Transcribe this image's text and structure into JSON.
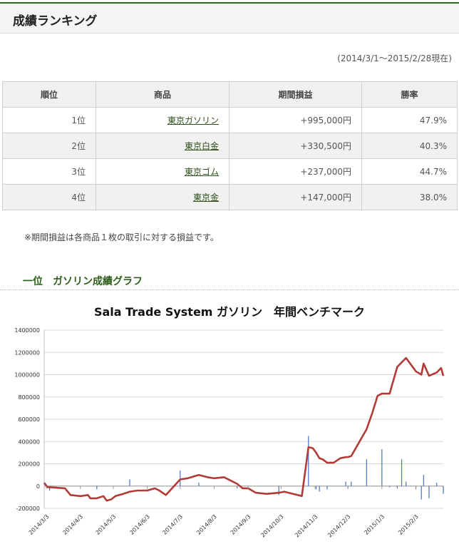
{
  "header": {
    "title": "成績ランキング"
  },
  "period_text": "(2014/3/1～2015/2/28現在)",
  "ranking": {
    "columns": [
      "順位",
      "商品",
      "期間損益",
      "勝率"
    ],
    "rows": [
      {
        "rank": "1位",
        "product": "東京ガソリン",
        "profit": "+995,000円",
        "win_rate": "47.9%"
      },
      {
        "rank": "2位",
        "product": "東京白金",
        "profit": "+330,500円",
        "win_rate": "40.3%"
      },
      {
        "rank": "3位",
        "product": "東京ゴム",
        "profit": "+237,000円",
        "win_rate": "44.7%"
      },
      {
        "rank": "4位",
        "product": "東京金",
        "profit": "+147,000円",
        "win_rate": "38.0%"
      }
    ]
  },
  "note": "※期間損益は各商品１枚の取引に対する損益です。",
  "section_title": "一位　ガソリン成績グラフ",
  "colors": {
    "accent": "#2c5e1a",
    "line": "#b23b36",
    "bar": "#4472c4"
  },
  "chart_data": {
    "type": "line",
    "title": "Sala Trade System ガソリン　年間ベンチマーク",
    "xlabel": "",
    "ylabel": "",
    "ylim": [
      -200000,
      1400000
    ],
    "y_ticks": [
      "1400000",
      "1200000",
      "1000000",
      "800000",
      "600000",
      "400000",
      "200000",
      "0",
      "-200000"
    ],
    "x_ticks": [
      "2014/3/3",
      "2014/4/3",
      "2014/5/3",
      "2014/6/3",
      "2014/7/3",
      "2014/8/3",
      "2014/9/3",
      "2014/10/3",
      "2014/11/3",
      "2014/12/3",
      "2015/1/3",
      "2015/2/3"
    ],
    "grid": true,
    "series": [
      {
        "kind": "cumulative",
        "x": [
          "2014/3/1",
          "2014/3/4",
          "2014/3/6",
          "2014/3/20",
          "2014/3/25",
          "2014/4/3",
          "2014/4/10",
          "2014/4/12",
          "2014/4/18",
          "2014/4/24",
          "2014/4/27",
          "2014/5/1",
          "2014/5/5",
          "2014/5/12",
          "2014/5/18",
          "2014/5/25",
          "2014/6/3",
          "2014/6/10",
          "2014/6/14",
          "2014/6/20",
          "2014/7/3",
          "2014/7/10",
          "2014/7/20",
          "2014/7/28",
          "2014/8/3",
          "2014/8/12",
          "2014/8/18",
          "2014/8/24",
          "2014/8/29",
          "2014/9/3",
          "2014/9/10",
          "2014/9/20",
          "2014/10/1",
          "2014/10/6",
          "2014/10/22",
          "2014/10/28",
          "2014/11/1",
          "2014/11/4",
          "2014/11/7",
          "2014/11/10",
          "2014/11/14",
          "2014/11/20",
          "2014/11/26",
          "2014/12/1",
          "2014/12/3",
          "2014/12/6",
          "2014/12/20",
          "2014/12/25",
          "2014/12/30",
          "2015/1/3",
          "2015/1/10",
          "2015/1/17",
          "2015/1/21",
          "2015/1/25",
          "2015/2/3",
          "2015/2/8",
          "2015/2/10",
          "2015/2/15",
          "2015/2/22",
          "2015/2/26",
          "2015/2/28"
        ],
        "y": [
          30000,
          -10000,
          -10000,
          -20000,
          -80000,
          -90000,
          -80000,
          -110000,
          -110000,
          -90000,
          -130000,
          -120000,
          -90000,
          -70000,
          -50000,
          -40000,
          -40000,
          -20000,
          -40000,
          -80000,
          60000,
          70000,
          100000,
          80000,
          70000,
          80000,
          50000,
          20000,
          -20000,
          -20000,
          -60000,
          -70000,
          -60000,
          -50000,
          -90000,
          350000,
          340000,
          300000,
          250000,
          240000,
          210000,
          210000,
          250000,
          260000,
          260000,
          270000,
          510000,
          650000,
          810000,
          830000,
          830000,
          1070000,
          1110000,
          1150000,
          1030000,
          1000000,
          1100000,
          990000,
          1020000,
          1060000,
          990000
        ]
      },
      {
        "kind": "daily_bars",
        "x": [
          "2014/3/6",
          "2014/4/18",
          "2014/5/18",
          "2014/7/3",
          "2014/7/20",
          "2014/8/24",
          "2014/10/1",
          "2014/10/28",
          "2014/11/4",
          "2014/11/7",
          "2014/11/14",
          "2014/12/1",
          "2014/12/3",
          "2014/12/6",
          "2014/12/20",
          "2015/1/3",
          "2015/1/10",
          "2015/1/17",
          "2015/1/21",
          "2015/1/25",
          "2015/2/3",
          "2015/2/8",
          "2015/2/10",
          "2015/2/15",
          "2015/2/22",
          "2015/2/28"
        ],
        "y": [
          -40000,
          -30000,
          60000,
          140000,
          30000,
          -20000,
          -80000,
          450000,
          -30000,
          -50000,
          -30000,
          40000,
          -20000,
          40000,
          240000,
          330000,
          -10000,
          -20000,
          240000,
          40000,
          -30000,
          -120000,
          100000,
          -110000,
          30000,
          -70000
        ]
      }
    ]
  }
}
